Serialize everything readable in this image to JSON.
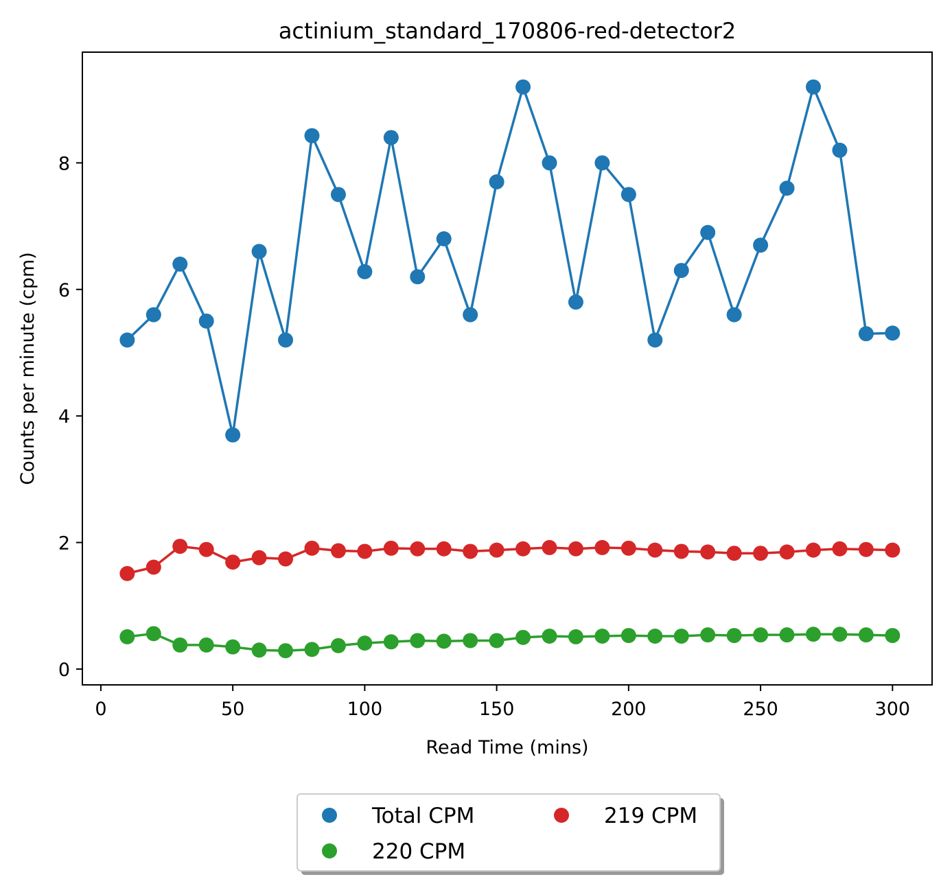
{
  "chart_data": {
    "type": "line",
    "title": "actinium_standard_170806-red-detector2",
    "xlabel": "Read Time (mins)",
    "ylabel": "Counts per minute (cpm)",
    "xlim": [
      -7,
      315
    ],
    "ylim": [
      -0.25,
      9.75
    ],
    "xticks": [
      0,
      50,
      100,
      150,
      200,
      250,
      300
    ],
    "yticks": [
      0,
      2,
      4,
      6,
      8
    ],
    "grid": false,
    "legend": {
      "placement": "bottom-center",
      "columns": 2
    },
    "x": [
      10,
      20,
      30,
      40,
      50,
      60,
      70,
      80,
      90,
      100,
      110,
      120,
      130,
      140,
      150,
      160,
      170,
      180,
      190,
      200,
      210,
      220,
      230,
      240,
      250,
      260,
      270,
      280,
      290,
      300
    ],
    "series": [
      {
        "name": "Total CPM",
        "color": "#1f77b4",
        "values": [
          5.2,
          5.6,
          6.4,
          5.5,
          3.7,
          6.6,
          5.2,
          8.43,
          7.5,
          6.28,
          8.4,
          6.2,
          6.8,
          5.6,
          7.7,
          9.2,
          8.0,
          5.8,
          8.0,
          7.5,
          5.2,
          6.3,
          6.9,
          5.6,
          6.7,
          7.6,
          9.2,
          8.2,
          5.3,
          5.31
        ]
      },
      {
        "name": "219 CPM",
        "color": "#d62728",
        "values": [
          1.51,
          1.61,
          1.94,
          1.89,
          1.69,
          1.76,
          1.74,
          1.91,
          1.87,
          1.86,
          1.91,
          1.9,
          1.9,
          1.86,
          1.88,
          1.9,
          1.92,
          1.9,
          1.92,
          1.91,
          1.88,
          1.86,
          1.85,
          1.83,
          1.83,
          1.85,
          1.88,
          1.9,
          1.89,
          1.88
        ]
      },
      {
        "name": "220 CPM",
        "color": "#2ca02c",
        "values": [
          0.51,
          0.56,
          0.38,
          0.38,
          0.35,
          0.3,
          0.29,
          0.31,
          0.37,
          0.41,
          0.43,
          0.45,
          0.44,
          0.45,
          0.45,
          0.5,
          0.52,
          0.51,
          0.52,
          0.53,
          0.52,
          0.52,
          0.54,
          0.53,
          0.54,
          0.54,
          0.55,
          0.55,
          0.54,
          0.53
        ]
      }
    ]
  }
}
